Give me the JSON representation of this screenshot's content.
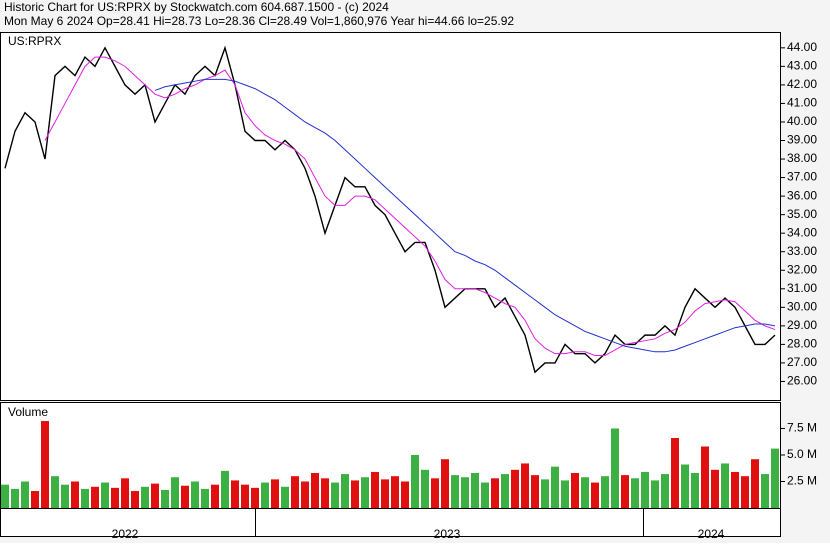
{
  "header": {
    "title": "Historic Chart for US:RPRX by Stockwatch.com 604.687.1500 - (c) 2024",
    "quote": "Mon May  6 2024  Op=28.41  Hi=28.73  Lo=28.36  Cl=28.49  Vol=1,860,976  Year hi=44.66  lo=25.92"
  },
  "chart_data": [
    {
      "type": "line",
      "label": "US:RPRX",
      "ylim": [
        25,
        44.8
      ],
      "yticks": [
        {
          "value": 26,
          "label": "26.00"
        },
        {
          "value": 27,
          "label": "27.00"
        },
        {
          "value": 28,
          "label": "28.00"
        },
        {
          "value": 29,
          "label": "29.00"
        },
        {
          "value": 30,
          "label": "30.00"
        },
        {
          "value": 31,
          "label": "31.00"
        },
        {
          "value": 32,
          "label": "32.00"
        },
        {
          "value": 33,
          "label": "33.00"
        },
        {
          "value": 34,
          "label": "34.00"
        },
        {
          "value": 35,
          "label": "35.00"
        },
        {
          "value": 36,
          "label": "36.00"
        },
        {
          "value": 37,
          "label": "37.00"
        },
        {
          "value": 38,
          "label": "38.00"
        },
        {
          "value": 39,
          "label": "39.00"
        },
        {
          "value": 40,
          "label": "40.00"
        },
        {
          "value": 41,
          "label": "41.00"
        },
        {
          "value": 42,
          "label": "42.00"
        },
        {
          "value": 43,
          "label": "43.00"
        },
        {
          "value": 44,
          "label": "44.00"
        }
      ],
      "x_labels": [
        "2022",
        "2023",
        "2024"
      ],
      "series": [
        {
          "color": "#000000",
          "values": [
            37.5,
            39.5,
            40.5,
            40,
            38,
            42.5,
            43,
            42.5,
            43.5,
            43,
            44,
            43,
            42,
            41.5,
            42,
            40,
            41,
            42,
            41.5,
            42.5,
            43,
            42.5,
            44,
            42,
            39.5,
            39,
            39,
            38.5,
            39,
            38.5,
            37.5,
            36,
            34,
            35.5,
            37,
            36.5,
            36.5,
            35.5,
            35,
            34,
            33,
            33.5,
            33.5,
            32,
            30,
            30.5,
            31,
            31,
            31,
            30,
            30.5,
            29.5,
            28.5,
            26.5,
            27,
            27,
            28,
            27.5,
            27.5,
            27,
            27.5,
            28.5,
            28,
            28,
            28.5,
            28.5,
            29,
            28.5,
            30,
            31,
            30.5,
            30,
            30.5,
            30,
            29,
            28,
            28,
            28.5
          ]
        },
        {
          "color": "#e020e0",
          "values": [
            null,
            null,
            null,
            null,
            39,
            40,
            41,
            42,
            43,
            43.5,
            43.5,
            43.3,
            43,
            42.5,
            42,
            41.5,
            41.3,
            41.5,
            41.8,
            42,
            42.3,
            42.5,
            42.8,
            42,
            40.5,
            39.8,
            39.3,
            39,
            38.8,
            38.5,
            38,
            37,
            36,
            35.5,
            35.5,
            36,
            36,
            35.8,
            35.3,
            34.8,
            34.3,
            33.8,
            33.3,
            32.5,
            31.5,
            31,
            31,
            31,
            30.8,
            30.5,
            30.2,
            30,
            29.3,
            28.3,
            27.8,
            27.5,
            27.5,
            27.6,
            27.6,
            27.4,
            27.4,
            27.7,
            28,
            28.1,
            28.2,
            28.3,
            28.6,
            28.8,
            29.2,
            29.8,
            30.2,
            30.3,
            30.4,
            30.3,
            29.8,
            29.3,
            29,
            28.8
          ]
        },
        {
          "color": "#2030d0",
          "values": [
            null,
            null,
            null,
            null,
            null,
            null,
            null,
            null,
            null,
            null,
            null,
            null,
            null,
            null,
            null,
            41.7,
            41.9,
            42,
            42.1,
            42.2,
            42.3,
            42.3,
            42.3,
            42.2,
            42,
            41.8,
            41.5,
            41.2,
            40.8,
            40.4,
            40,
            39.7,
            39.4,
            39,
            38.5,
            38,
            37.5,
            37,
            36.5,
            36,
            35.5,
            35,
            34.5,
            34,
            33.5,
            33,
            32.8,
            32.5,
            32.3,
            32,
            31.6,
            31.2,
            30.8,
            30.4,
            30,
            29.6,
            29.3,
            29,
            28.7,
            28.5,
            28.3,
            28.1,
            27.9,
            27.8,
            27.7,
            27.6,
            27.6,
            27.7,
            27.9,
            28.1,
            28.3,
            28.5,
            28.7,
            28.9,
            29,
            29.1,
            29.1,
            29
          ]
        }
      ]
    },
    {
      "type": "bar",
      "label": "Volume",
      "ylim": [
        0,
        9.9
      ],
      "yticks": [
        {
          "value": 2.5,
          "label": "2.5 M"
        },
        {
          "value": 5,
          "label": "5.0 M"
        },
        {
          "value": 7.5,
          "label": "7.5 M"
        }
      ],
      "up_color": "#3cb043",
      "down_color": "#e01010",
      "values": [
        2.2,
        1.8,
        2.5,
        1.6,
        8.2,
        3,
        2.2,
        2.5,
        1.8,
        2,
        2.4,
        1.9,
        2.8,
        1.6,
        2,
        2.3,
        1.7,
        2.9,
        2.1,
        2.5,
        1.8,
        2.2,
        3.5,
        2.6,
        2.2,
        1.9,
        2.4,
        2.7,
        2,
        3,
        2.5,
        3.3,
        2.8,
        2.4,
        3.2,
        2.6,
        2.9,
        3.4,
        2.7,
        3,
        2.5,
        5,
        3.6,
        2.8,
        4.6,
        3.1,
        2.9,
        3.3,
        2.4,
        2.8,
        3.2,
        3.6,
        4.2,
        3.1,
        2.7,
        3.9,
        2.6,
        3.3,
        2.9,
        2.4,
        3,
        7.5,
        3.1,
        2.8,
        3.4,
        2.6,
        3.2,
        6.6,
        4.1,
        3.3,
        5.8,
        3.6,
        4.2,
        3.4,
        3,
        4.6,
        3.2,
        5.6
      ]
    }
  ]
}
